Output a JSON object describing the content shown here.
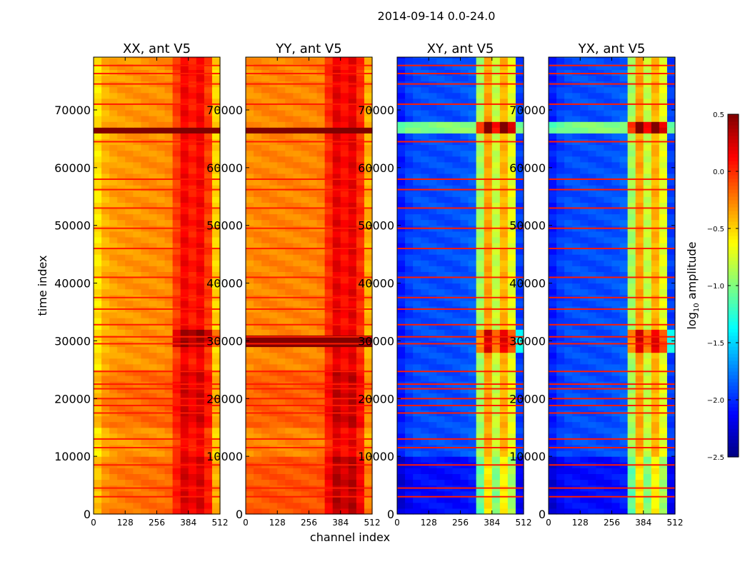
{
  "chart_data": {
    "type": "heatmap",
    "title": "2014-09-14 0.0-24.0",
    "xlabel": "channel index",
    "ylabel": "time index",
    "xlim": [
      0,
      512
    ],
    "ylim": [
      0,
      79150
    ],
    "xticks": [
      "0",
      "128",
      "256",
      "384",
      "512"
    ],
    "xtick_values": [
      0,
      128,
      256,
      384,
      512
    ],
    "yticks": [
      "0",
      "10000",
      "20000",
      "30000",
      "40000",
      "50000",
      "60000",
      "70000"
    ],
    "ytick_values": [
      0,
      10000,
      20000,
      30000,
      40000,
      50000,
      60000,
      70000
    ],
    "colorbar": {
      "label": "log10 amplitude",
      "label_main": "log",
      "label_sub": "10",
      "label_rest": " amplitude",
      "range": [
        -2.5,
        0.5
      ],
      "ticks": [
        "0.5",
        "0.0",
        "−0.5",
        "−1.0",
        "−1.5",
        "−2.0",
        "−2.5"
      ],
      "tick_values": [
        0.5,
        0.0,
        -0.5,
        -1.0,
        -1.5,
        -2.0,
        -2.5
      ],
      "colormap": "jet"
    },
    "channel_bins": [
      0,
      32,
      64,
      96,
      128,
      160,
      192,
      224,
      256,
      288,
      320,
      352,
      384,
      416,
      448,
      480,
      512
    ],
    "flag_rows": [
      3000,
      4500,
      8500,
      11500,
      13000,
      17500,
      18800,
      20000,
      21700,
      22500,
      24700,
      29500,
      30700,
      32800,
      35500,
      37500,
      41000,
      46000,
      49500,
      53000,
      56200,
      58000,
      64500,
      71000,
      74500,
      76300,
      77700
    ],
    "panels": [
      {
        "title": "XX, ant V5",
        "profile": [
          -0.55,
          -0.4,
          -0.35,
          -0.33,
          -0.32,
          -0.32,
          -0.3,
          -0.3,
          -0.3,
          -0.28,
          -0.05,
          0.15,
          0.05,
          0.15,
          -0.05,
          -0.5
        ],
        "regions": [
          {
            "t": [
              0,
              10000
            ],
            "delta": 0.1
          },
          {
            "t": [
              15000,
              25000
            ],
            "delta": 0.12
          },
          {
            "t": [
              28500,
              32500
            ],
            "delta": 0.3,
            "from_bin": 10
          },
          {
            "t": [
              65800,
              67600
            ],
            "delta": 1.5
          }
        ]
      },
      {
        "title": "YY, ant V5",
        "profile": [
          -0.3,
          -0.28,
          -0.27,
          -0.27,
          -0.27,
          -0.27,
          -0.27,
          -0.27,
          -0.27,
          -0.25,
          0.0,
          0.2,
          0.1,
          0.2,
          0.0,
          -0.4
        ],
        "regions": [
          {
            "t": [
              0,
              10000
            ],
            "delta": 0.15
          },
          {
            "t": [
              15000,
              25000
            ],
            "delta": 0.12
          },
          {
            "t": [
              29000,
              31000
            ],
            "delta": 1.5
          },
          {
            "t": [
              65800,
              67600
            ],
            "delta": 1.5
          }
        ]
      },
      {
        "title": "XY, ant V5",
        "profile": [
          -2.05,
          -1.95,
          -1.9,
          -1.9,
          -1.9,
          -1.9,
          -1.9,
          -1.9,
          -1.88,
          -1.85,
          -0.9,
          -0.35,
          -0.8,
          -0.4,
          -0.7,
          -1.95
        ],
        "regions": [
          {
            "t": [
              0,
              10000
            ],
            "delta": -0.2
          },
          {
            "t": [
              28000,
              32500
            ],
            "delta": 0.6,
            "from_bin": 10
          },
          {
            "t": [
              66000,
              68000
            ],
            "delta": 0.9
          }
        ]
      },
      {
        "title": "YX, ant V5",
        "profile": [
          -2.05,
          -1.95,
          -1.9,
          -1.9,
          -1.9,
          -1.9,
          -1.9,
          -1.9,
          -1.88,
          -1.85,
          -0.9,
          -0.35,
          -0.8,
          -0.4,
          -0.7,
          -1.95
        ],
        "regions": [
          {
            "t": [
              0,
              10000
            ],
            "delta": -0.2
          },
          {
            "t": [
              28000,
              32500
            ],
            "delta": 0.6,
            "from_bin": 10
          },
          {
            "t": [
              66000,
              68000
            ],
            "delta": 0.9
          }
        ]
      }
    ]
  }
}
